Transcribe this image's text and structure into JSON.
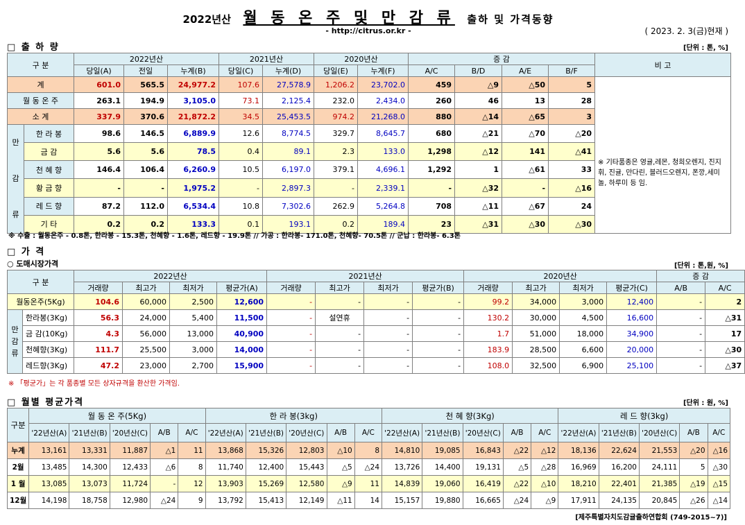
{
  "header": {
    "year": "2022년산",
    "title": "월 동 온 주 및 만 감 류",
    "subtitle": "출하 및 가격동향",
    "url": "- http://citrus.or.kr -",
    "as_of": "( 2023. 2. 3(금)현재 )"
  },
  "shipment": {
    "section_title": "□ 출 하 량",
    "unit": "[단위 : 톤, %]",
    "h_category": "구    분",
    "h_2022": "2022년산",
    "h_2021": "2021년산",
    "h_2020": "2020년산",
    "h_change": "증    감",
    "h_remark": "비 고",
    "cols": [
      "당일(A)",
      "전일",
      "누계(B)",
      "당일(C)",
      "누계(D)",
      "당일(E)",
      "누계(F)",
      "A/C",
      "B/D",
      "A/E",
      "B/F"
    ],
    "group_label": [
      "만",
      "감",
      "류"
    ],
    "remark": "※ 기타품종은 영귤,레몬, 청희오렌지, 진지휘, 진귤, 만다린, 블러드오렌지, 폰깡,세미놀, 하루미 등 임.",
    "rows": [
      {
        "label": "계",
        "v": [
          "601.0",
          "565.5",
          "24,977.2",
          "107.6",
          "27,578.9",
          "1,206.2",
          "23,702.0",
          "459",
          "△9",
          "△50",
          "5"
        ]
      },
      {
        "label": "월 동 온 주",
        "v": [
          "263.1",
          "194.9",
          "3,105.0",
          "73.1",
          "2,125.4",
          "232.0",
          "2,434.0",
          "260",
          "46",
          "13",
          "28"
        ]
      },
      {
        "label": "소    계",
        "v": [
          "337.9",
          "370.6",
          "21,872.2",
          "34.5",
          "25,453.5",
          "974.2",
          "21,268.0",
          "880",
          "△14",
          "△65",
          "3"
        ]
      },
      {
        "label": "한 라 봉",
        "v": [
          "98.6",
          "146.5",
          "6,889.9",
          "12.6",
          "8,774.5",
          "329.7",
          "8,645.7",
          "680",
          "△21",
          "△70",
          "△20"
        ]
      },
      {
        "label": "금    감",
        "v": [
          "5.6",
          "5.6",
          "78.5",
          "0.4",
          "89.1",
          "2.3",
          "133.0",
          "1,298",
          "△12",
          "141",
          "△41"
        ]
      },
      {
        "label": "천 혜 향",
        "v": [
          "146.4",
          "106.4",
          "6,260.9",
          "10.5",
          "6,197.0",
          "379.1",
          "4,696.1",
          "1,292",
          "1",
          "△61",
          "33"
        ]
      },
      {
        "label": "황 금 향",
        "v": [
          "-",
          "-",
          "1,975.2",
          "-",
          "2,897.3",
          "-",
          "2,339.1",
          "-",
          "△32",
          "-",
          "△16"
        ]
      },
      {
        "label": "레 드 향",
        "v": [
          "87.2",
          "112.0",
          "6,534.4",
          "10.8",
          "7,302.6",
          "262.9",
          "5,264.8",
          "708",
          "△11",
          "△67",
          "24"
        ]
      },
      {
        "label": "기    타",
        "v": [
          "0.2",
          "0.2",
          "133.3",
          "0.1",
          "193.1",
          "0.2",
          "189.4",
          "23",
          "△31",
          "△30",
          "△30"
        ]
      }
    ],
    "note": "※ 수출 : 월동온주 - 0.8톤, 한라봉 - 15.3톤, 천혜향 - 1.6톤, 레드향 - 19.9톤  //  가공  :  한라봉- 171.0톤, 천혜향- 70.5톤  //  군납 : 한라봉- 6.3톤"
  },
  "price": {
    "section_title": "□ 가      격",
    "sub_title": "○ 도매시장가격",
    "unit": "[단위 : 톤,원, %]",
    "h_category": "구    분",
    "h_2022": "2022년산",
    "h_2021": "2021년산",
    "h_2020": "2020년산",
    "h_change": "증    감",
    "cols": [
      "거래량",
      "최고가",
      "최저가",
      "평균가(A)",
      "거래량",
      "최고가",
      "최저가",
      "평균가(B)",
      "거래량",
      "최고가",
      "최저가",
      "평균가(C)",
      "A/B",
      "A/C"
    ],
    "group_label": [
      "만",
      "감",
      "류"
    ],
    "rows": [
      {
        "label": "월동온주(5Kg)",
        "v": [
          "104.6",
          "60,000",
          "2,500",
          "12,600",
          "-",
          "-",
          "-",
          "-",
          "99.2",
          "34,000",
          "3,000",
          "12,400",
          "-",
          "2"
        ]
      },
      {
        "label": "한라봉(3Kg)",
        "v": [
          "56.3",
          "24,000",
          "5,400",
          "11,500",
          "-",
          "설연휴",
          "-",
          "-",
          "130.2",
          "30,000",
          "4,500",
          "16,600",
          "-",
          "△31"
        ]
      },
      {
        "label": "금 감(10Kg)",
        "v": [
          "4.3",
          "56,000",
          "13,000",
          "40,900",
          "-",
          "-",
          "-",
          "-",
          "1.7",
          "51,000",
          "18,000",
          "34,900",
          "-",
          "17"
        ]
      },
      {
        "label": "천혜향(3Kg)",
        "v": [
          "111.7",
          "25,500",
          "3,000",
          "14,000",
          "-",
          "-",
          "-",
          "-",
          "183.9",
          "28,500",
          "6,600",
          "20,000",
          "-",
          "△30"
        ]
      },
      {
        "label": "레드향(3Kg)",
        "v": [
          "47.2",
          "23,000",
          "2,700",
          "15,900",
          "-",
          "-",
          "-",
          "-",
          "108.0",
          "32,500",
          "6,900",
          "25,100",
          "-",
          "△37"
        ]
      }
    ],
    "note": "※ 「평균가」는 각 품종별 모든 상자규격을 환산한 가격임."
  },
  "monthly": {
    "section_title": "□ 월별 평균가격",
    "unit": "[단위 : 원, %]",
    "h_category": "구분",
    "groups": [
      "월 동 온 주(5Kg)",
      "한 라 봉(3kg)",
      "천 혜 향(3Kg)",
      "레 드 향(3kg)"
    ],
    "cols": [
      "'22년산(A)",
      "'21년산(B)",
      "'20년산(C)",
      "A/B",
      "A/C"
    ],
    "rows": [
      {
        "label": "누계",
        "v": [
          "13,161",
          "13,331",
          "11,887",
          "△1",
          "11",
          "13,868",
          "15,326",
          "12,803",
          "△10",
          "8",
          "14,810",
          "19,085",
          "16,843",
          "△22",
          "△12",
          "18,136",
          "22,624",
          "21,553",
          "△20",
          "△16"
        ]
      },
      {
        "label": "2월",
        "v": [
          "13,485",
          "14,300",
          "12,433",
          "△6",
          "8",
          "11,740",
          "12,400",
          "15,443",
          "△5",
          "△24",
          "13,726",
          "14,400",
          "19,131",
          "△5",
          "△28",
          "16,969",
          "16,200",
          "24,111",
          "5",
          "△30"
        ]
      },
      {
        "label": "1 월",
        "v": [
          "13,085",
          "13,073",
          "11,724",
          "-",
          "12",
          "13,903",
          "15,269",
          "12,580",
          "△9",
          "11",
          "14,839",
          "19,060",
          "16,419",
          "△22",
          "△10",
          "18,210",
          "22,401",
          "21,385",
          "△19",
          "△15"
        ]
      },
      {
        "label": "12월",
        "v": [
          "14,198",
          "18,758",
          "12,980",
          "△24",
          "9",
          "13,792",
          "15,413",
          "12,149",
          "△11",
          "14",
          "15,157",
          "19,880",
          "16,665",
          "△24",
          "△9",
          "17,911",
          "24,135",
          "20,845",
          "△26",
          "△14"
        ]
      }
    ]
  },
  "footer": "[제주특별자치도감귤출하연합회 (749-2015~7)]"
}
